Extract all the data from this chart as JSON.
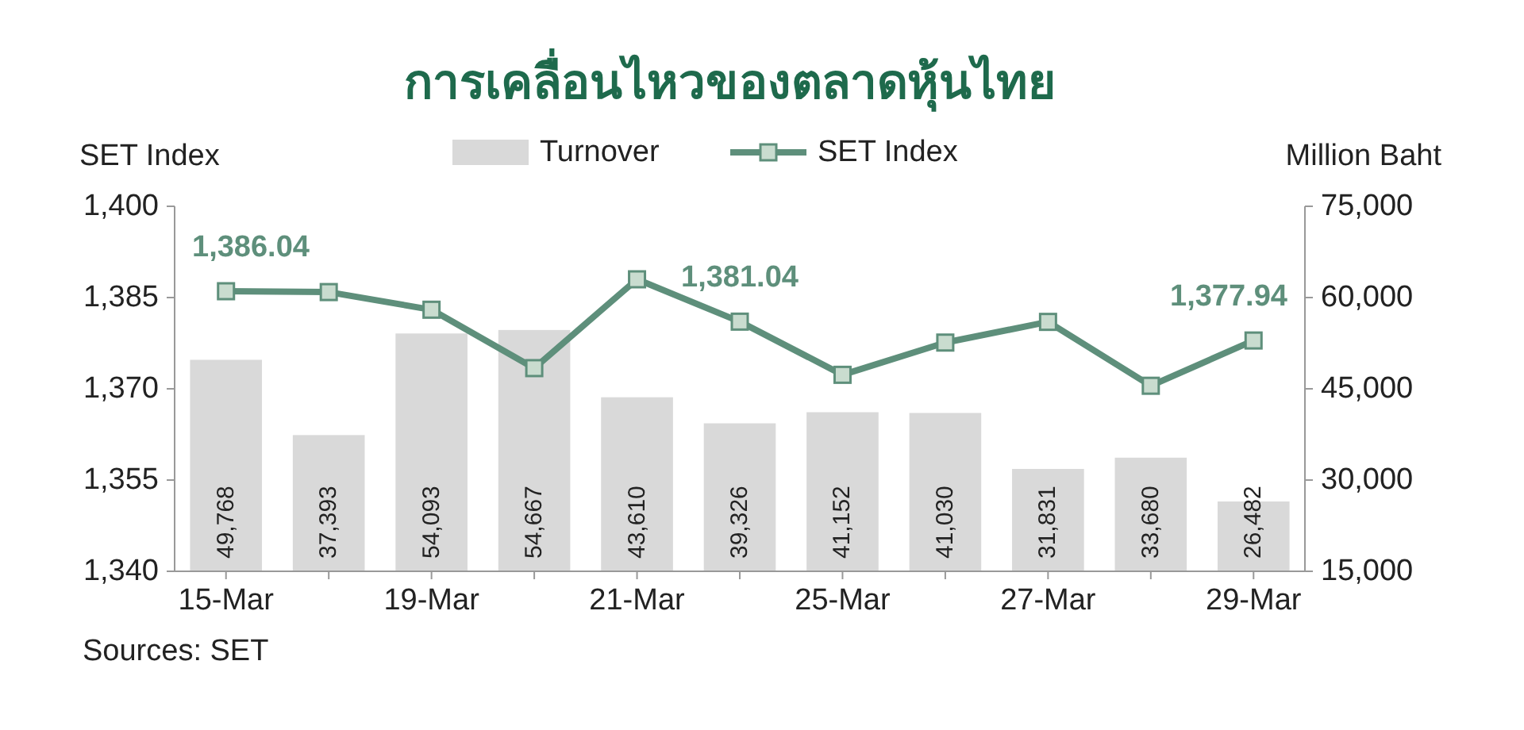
{
  "chart_data": {
    "type": "bar",
    "title": "การเคลื่อนไหวของตลาดหุ้นไทย",
    "ylabel": "SET Index",
    "y2label": "Million Baht",
    "categories": [
      "15-Mar",
      null,
      "19-Mar",
      null,
      "21-Mar",
      null,
      "25-Mar",
      null,
      "27-Mar",
      null,
      "29-Mar"
    ],
    "series": [
      {
        "name": "Turnover",
        "axis": "y2",
        "color": "#d9d9d9",
        "values": [
          49768,
          37393,
          54093,
          54667,
          43610,
          39326,
          41152,
          41030,
          31831,
          33680,
          26482
        ],
        "value_labels": [
          "49,768",
          "37,393",
          "54,093",
          "54,667",
          "43,610",
          "39,326",
          "41,152",
          "41,030",
          "31,831",
          "33,680",
          "26,482"
        ]
      },
      {
        "name": "SET Index",
        "type": "line",
        "color": "#5e8f7b",
        "values": [
          1386.04,
          1385.9,
          1383.0,
          1373.4,
          1388.0,
          1381.04,
          1372.3,
          1377.6,
          1381.0,
          1370.5,
          1377.94
        ],
        "value_labels": [
          "1,386.04",
          null,
          null,
          null,
          null,
          "1,381.04",
          null,
          null,
          null,
          null,
          "1,377.94"
        ]
      }
    ],
    "ylim": [
      1340,
      1400
    ],
    "yticks": [
      {
        "value": 1340,
        "label": "1,340"
      },
      {
        "value": 1355,
        "label": "1,355"
      },
      {
        "value": 1370,
        "label": "1,370"
      },
      {
        "value": 1385,
        "label": "1,385"
      },
      {
        "value": 1400,
        "label": "1,400"
      }
    ],
    "y2lim": [
      15000,
      75000
    ],
    "y2ticks": [
      {
        "value": 15000,
        "label": "15,000"
      },
      {
        "value": 30000,
        "label": "30,000"
      },
      {
        "value": 45000,
        "label": "45,000"
      },
      {
        "value": 60000,
        "label": "60,000"
      },
      {
        "value": 75000,
        "label": "75,000"
      }
    ],
    "legend": "top",
    "marker": "square",
    "grid": false,
    "annotations": [
      "Sources: SET"
    ]
  }
}
